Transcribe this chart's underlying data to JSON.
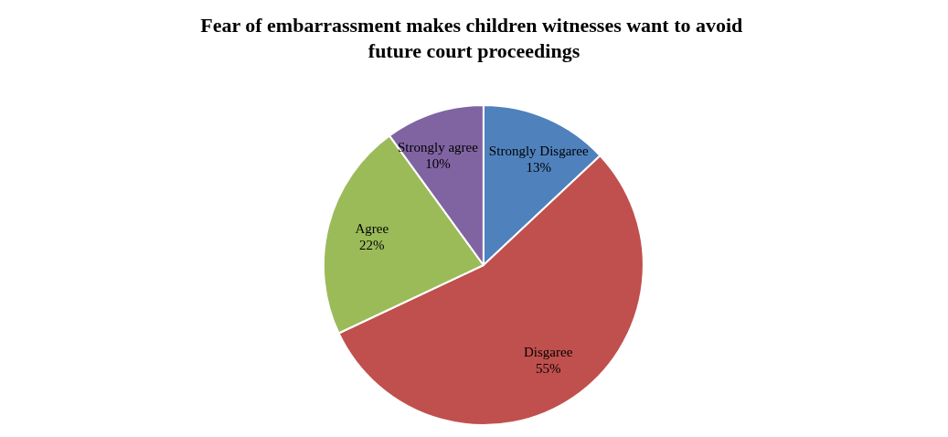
{
  "chart_data": {
    "type": "pie",
    "title": "Fear of embarrassment makes children witnesses want to avoid future court proceedings",
    "categories": [
      "Strongly Disgaree",
      "Disgaree",
      "Agree",
      "Strongly agree"
    ],
    "values": [
      13,
      55,
      22,
      10
    ],
    "value_labels": [
      "13%",
      "55%",
      "22%",
      "10%"
    ],
    "colors": [
      "#4f81bd",
      "#c0504d",
      "#9bbb59",
      "#8064a2"
    ],
    "legend": false
  }
}
